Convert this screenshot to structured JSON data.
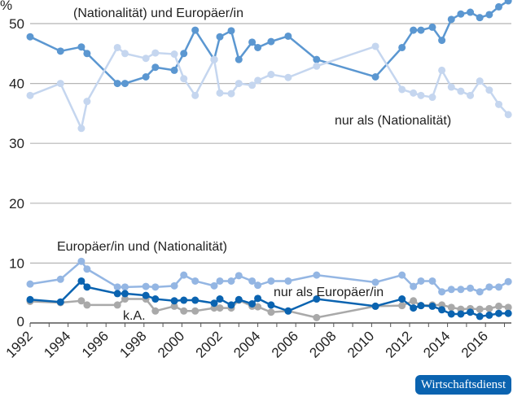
{
  "chart_data": {
    "type": "line",
    "ylabel": "%",
    "ylim": [
      0,
      55
    ],
    "yticks": [
      0,
      10,
      20,
      30,
      40,
      50
    ],
    "xlim": [
      1992,
      2017.4
    ],
    "xticks": [
      "1992",
      "1994",
      "1996",
      "1998",
      "2000",
      "2002",
      "2004",
      "2006",
      "2008",
      "2010",
      "2012",
      "2014",
      "2016"
    ],
    "grid": true,
    "x": [
      1992.0,
      1993.6,
      1994.7,
      1995.0,
      1996.6,
      1997.0,
      1998.1,
      1998.6,
      1999.6,
      2000.1,
      2000.7,
      2001.7,
      2002.0,
      2002.6,
      2003.0,
      2003.7,
      2004.0,
      2004.7,
      2005.6,
      2007.1,
      2010.2,
      2011.6,
      2012.2,
      2012.6,
      2013.2,
      2013.7,
      2014.2,
      2014.7,
      2015.2,
      2015.7,
      2016.2,
      2016.7,
      2017.2
    ],
    "series": [
      {
        "name": "(Nationalität) und Europäer/in",
        "color": "#5b97d1",
        "values": [
          47.8,
          45.4,
          46.1,
          45.0,
          40.0,
          40.0,
          41.1,
          42.7,
          42.2,
          45.0,
          48.9,
          44.0,
          47.8,
          48.8,
          44.0,
          46.9,
          46.0,
          47.0,
          47.9,
          44.0,
          41.1,
          46.0,
          48.9,
          48.9,
          49.4,
          47.2,
          50.7,
          51.6,
          51.9,
          51.0,
          51.5,
          52.8,
          53.8
        ]
      },
      {
        "name": "nur als (Nationalität)",
        "color": "#c5d6ef",
        "values": [
          38.0,
          40.0,
          32.5,
          37.0,
          46.0,
          45.0,
          44.2,
          45.1,
          44.9,
          40.8,
          38.0,
          44.0,
          38.4,
          38.3,
          40.0,
          39.7,
          40.5,
          41.5,
          41.0,
          42.9,
          46.2,
          39.0,
          38.4,
          38.0,
          37.7,
          42.2,
          39.4,
          38.7,
          38.0,
          40.4,
          38.9,
          36.5,
          34.8
        ]
      },
      {
        "name": "Europäer/in und (Nationalität)",
        "color": "#94b6e3",
        "values": [
          6.5,
          7.3,
          10.3,
          9.0,
          6.0,
          6.0,
          6.1,
          6.0,
          6.2,
          8.0,
          7.0,
          6.2,
          7.0,
          7.0,
          7.9,
          7.0,
          6.3,
          7.0,
          7.0,
          8.0,
          6.8,
          8.0,
          6.1,
          7.0,
          7.0,
          5.2,
          5.6,
          5.6,
          5.8,
          5.2,
          6.0,
          6.0,
          6.9
        ]
      },
      {
        "name": "k.A.",
        "color": "#a9a9a9",
        "values": [
          3.6,
          3.4,
          3.7,
          3.0,
          3.0,
          4.0,
          4.0,
          2.0,
          2.8,
          2.0,
          2.0,
          2.5,
          2.5,
          2.5,
          3.8,
          2.8,
          2.7,
          1.8,
          2.0,
          0.9,
          2.8,
          2.9,
          3.7,
          2.9,
          3.0,
          3.0,
          2.6,
          2.3,
          2.4,
          2.3,
          2.4,
          2.8,
          2.6
        ]
      },
      {
        "name": "nur als Europäer/in",
        "color": "#0a63b0",
        "values": [
          3.9,
          3.5,
          7.0,
          6.0,
          4.9,
          4.9,
          4.6,
          4.0,
          3.7,
          3.8,
          3.8,
          3.3,
          4.0,
          3.0,
          3.9,
          3.2,
          4.1,
          3.0,
          2.0,
          4.0,
          2.8,
          4.0,
          2.5,
          2.9,
          2.8,
          2.2,
          1.5,
          1.5,
          1.8,
          1.1,
          1.3,
          1.6,
          1.6
        ]
      }
    ]
  },
  "source_badge": "Wirtschaftsdienst"
}
